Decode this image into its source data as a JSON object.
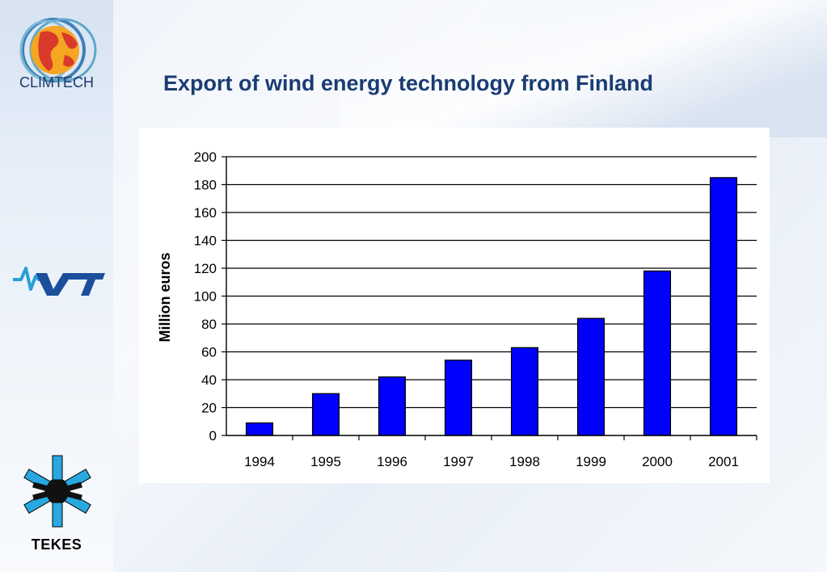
{
  "sidebar": {
    "logos": {
      "climtech": "CLIMTECH",
      "tekes": "TEKES"
    }
  },
  "slide": {
    "title": "Export of wind energy technology from Finland"
  },
  "colors": {
    "title": "#1a3c73",
    "bar_fill": "#0000ff",
    "bar_stroke": "#000000",
    "gridline": "#000000"
  },
  "chart_data": {
    "type": "bar",
    "categories": [
      "1994",
      "1995",
      "1996",
      "1997",
      "1998",
      "1999",
      "2000",
      "2001"
    ],
    "values": [
      9,
      30,
      42,
      54,
      63,
      84,
      118,
      185
    ],
    "title": "",
    "xlabel": "",
    "ylabel": "Million euros",
    "ylim": [
      0,
      200
    ],
    "yticks": [
      0,
      20,
      40,
      60,
      80,
      100,
      120,
      140,
      160,
      180,
      200
    ],
    "grid": true,
    "legend": "none"
  }
}
